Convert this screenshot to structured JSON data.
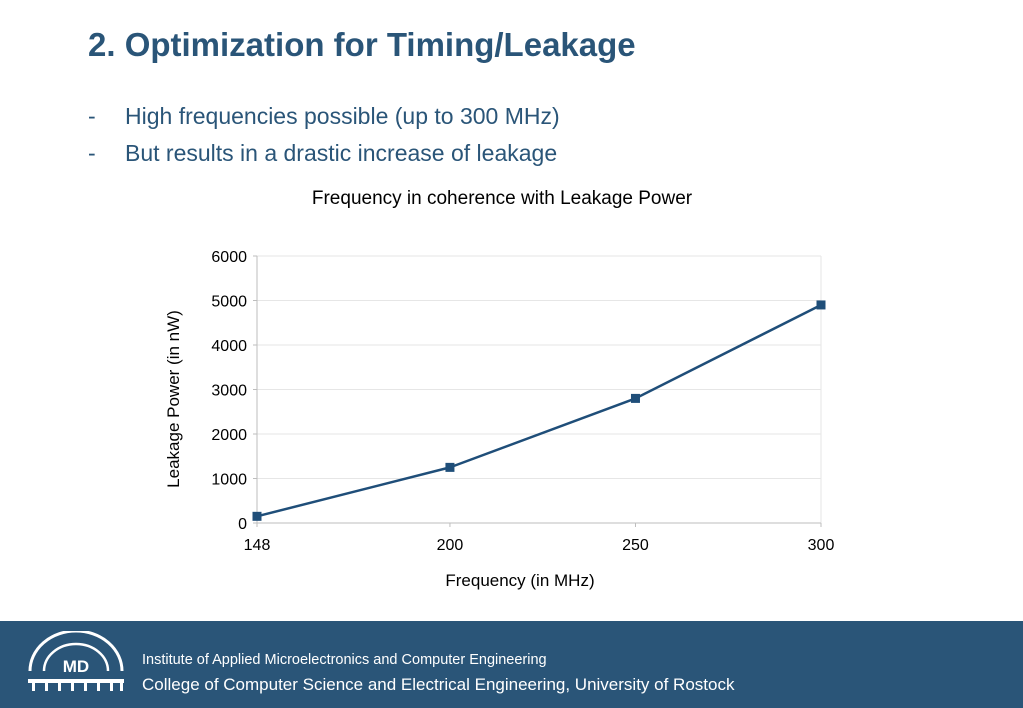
{
  "slide": {
    "title": "2. Optimization for Timing/Leakage",
    "bullets": [
      {
        "marker": "-",
        "text": "High frequencies possible (up to 300 MHz)"
      },
      {
        "marker": "-",
        "text": "But results in a drastic increase of leakage"
      }
    ]
  },
  "chart_data": {
    "type": "line",
    "title": "Frequency in coherence with Leakage Power",
    "xlabel": "Frequency (in MHz)",
    "ylabel": "Leakage Power (in nW)",
    "x": [
      148,
      200,
      250,
      300
    ],
    "series": [
      {
        "values": [
          150,
          1250,
          2800,
          4900
        ],
        "color": "#1f4e79",
        "marker": "square"
      }
    ],
    "xlim": [
      148,
      300
    ],
    "ylim": [
      0,
      6000
    ],
    "x_ticks": [
      148,
      200,
      250,
      300
    ],
    "y_ticks": [
      0,
      1000,
      2000,
      3000,
      4000,
      5000,
      6000
    ],
    "grid": true,
    "legend": "none"
  },
  "footer": {
    "logo_text": "MD",
    "line1": "Institute of Applied Microelectronics and Computer Engineering",
    "line2": "College of Computer Science and Electrical Engineering, University of Rostock",
    "background": "#2a5578"
  },
  "colors": {
    "accent": "#2a5578",
    "line": "#1f4e79",
    "grid": "#e6e6e6"
  }
}
